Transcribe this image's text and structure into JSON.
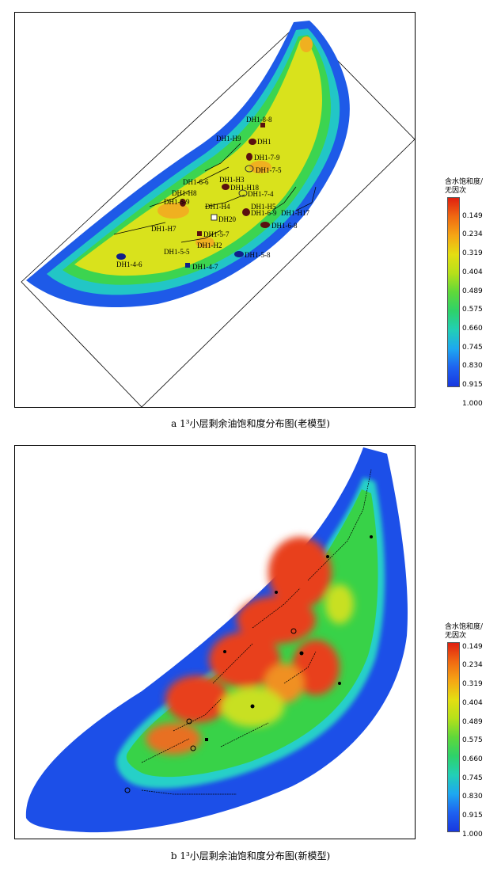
{
  "figure_a": {
    "caption": "a 1³小层剩余油饱和度分布图(老模型)",
    "legend": {
      "title_line1": "含水饱和度/",
      "title_line2": "无因次",
      "ticks": [
        "0.149",
        "0.234",
        "0.319",
        "0.404",
        "0.489",
        "0.575",
        "0.660",
        "0.745",
        "0.830",
        "0.915",
        "1.000"
      ]
    },
    "wells": [
      "DH1-8-8",
      "DH1",
      "DH1-H9",
      "DH1-7-9",
      "DH1-7-5",
      "DH1-6-6",
      "DH1-H3",
      "DH1-H8",
      "DH1-H18",
      "DH1-7-4",
      "DH1-5-9",
      "DH1-H4",
      "DH1-H5",
      "DH1-6-9",
      "DH1-H17",
      "DH20",
      "DH1-6-8",
      "DH1-H7",
      "DH1-5-7",
      "DH1-H2",
      "DH1-5-5",
      "DH1-5-8",
      "DH1-4-6",
      "DH1-4-7"
    ]
  },
  "figure_b": {
    "caption": "b 1³小层剩余油饱和度分布图(新模型)",
    "legend": {
      "title_line1": "含水饱和度/",
      "title_line2": "无因次",
      "ticks": [
        "0.149",
        "0.234",
        "0.319",
        "0.404",
        "0.489",
        "0.575",
        "0.660",
        "0.745",
        "0.830",
        "0.915",
        "1.000"
      ]
    }
  },
  "colors": {
    "low_saturation": "#e02010",
    "mid_saturation": "#d9e21c",
    "high_saturation": "#1838e0",
    "green": "#35d24a",
    "cyan": "#20c8d8"
  }
}
